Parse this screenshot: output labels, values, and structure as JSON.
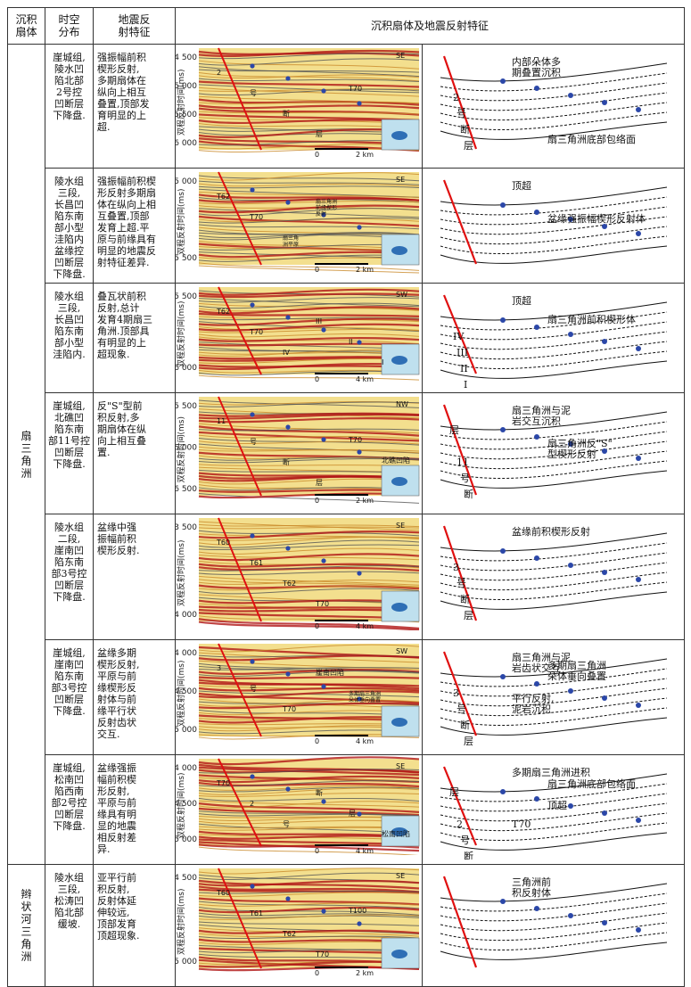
{
  "header": {
    "col1": "沉积\n扇体",
    "col2": "时空\n分布",
    "col3": "地震反\n射特征",
    "col4": "沉积扇体及地震反射特征"
  },
  "categories": {
    "fan_delta": "扇\n三\n角\n洲",
    "braided_delta": "辫\n状\n河\n三\n角\n洲"
  },
  "axis_label": "双程反射时间(ms)",
  "rows": [
    {
      "time": "崖城组,\n陵水凹\n陷北部\n2号控\n凹断层\n下降盘.",
      "desc": "强振幅前积\n楔形反射,\n多期扇体在\n纵向上相互\n叠置,顶部发\n育明显的上\n超.",
      "ticks": [
        "4 500",
        "5 000",
        "5 500",
        "6 000"
      ],
      "scale": "2 km",
      "orient": "SE",
      "profile_labels": [
        "2",
        "号",
        "断",
        "层",
        "T70"
      ],
      "sketch": [
        "内部朵体多\n期叠置沉积",
        "2",
        "号",
        "断",
        "层",
        "扇三角洲底部包络面"
      ]
    },
    {
      "time": "陵水组\n三段,\n长昌凹\n陷东南\n部小型\n洼陷内\n盆缘控\n凹断层\n下降盘.",
      "desc": "强振幅前积楔\n形反射多期扇\n体在纵向上相\n互叠置,顶部\n发育上超.平\n原与前缘具有\n明显的地震反\n射特征差异.",
      "ticks": [
        "5 000",
        "5 500"
      ],
      "scale": "2 km",
      "orient": "SE",
      "profile_labels": [
        "T62",
        "T70",
        "扇三角\n洲平原",
        "扇三角洲\n前缘楔形\n反射"
      ],
      "sketch": [
        "顶超",
        "盆缘强振幅楔形反射体"
      ]
    },
    {
      "time": "陵水组\n三段,\n长昌凹\n陷东南\n部小型\n洼陷内.",
      "desc": "叠瓦状前积\n反射,总计\n发育4期扇三\n角洲.顶部具\n有明显的上\n超现象.",
      "ticks": [
        "5 500",
        "6 000"
      ],
      "scale": "4 km",
      "orient": "SW",
      "profile_labels": [
        "T62",
        "T70",
        "IV",
        "III",
        "II",
        "I"
      ],
      "sketch": [
        "顶超",
        "IV",
        "III",
        "II",
        "I",
        "扇三角洲前积楔形体"
      ]
    },
    {
      "time": "崖城组,\n北礁凹\n陷东南\n部11号控\n凹断层\n下降盘.",
      "desc": "反\"S\"型前\n积反射,多\n期扇体在纵\n向上相互叠\n置.",
      "ticks": [
        "5 500",
        "6 000",
        "6 500"
      ],
      "scale": "2 km",
      "orient": "NW",
      "profile_labels": [
        "11",
        "号",
        "断",
        "层",
        "T70",
        "北礁凹陷"
      ],
      "sketch": [
        "扇三角洲与泥\n岩交互沉积",
        "扇三角洲反\"S\"\n型楔形反射",
        "11",
        "号",
        "断",
        "层"
      ]
    },
    {
      "time": "陵水组\n二段,\n崖南凹\n陷东南\n部3号控\n凹断层\n下降盘.",
      "desc": "盆缘中强\n振幅前积\n楔形反射.",
      "ticks": [
        "3 500",
        "4 000"
      ],
      "scale": "4 km",
      "orient": "SE",
      "profile_labels": [
        "T60",
        "T61",
        "T62",
        "T70"
      ],
      "sketch": [
        "盆缘前积楔形反射",
        "3",
        "号",
        "断",
        "层"
      ]
    },
    {
      "time": "崖城组,\n崖南凹\n陷东南\n部3号控\n凹断层\n下降盘.",
      "desc": "盆缘多期\n楔形反射,\n平原与前\n缘楔形反\n射体与前\n缘平行状\n反射齿状\n交互.",
      "ticks": [
        "4 000",
        "4 500",
        "5 000"
      ],
      "scale": "4 km",
      "orient": "SW",
      "profile_labels": [
        "3",
        "号",
        "T70",
        "崖南凹陷",
        "多期扇三角洲\n朵体垂向叠置"
      ],
      "sketch": [
        "扇三角洲与泥\n岩齿状交互",
        "3",
        "号",
        "断",
        "层",
        "多期扇三角洲\n朵体垂向叠置",
        "平行反射,\n泥岩沉积"
      ]
    },
    {
      "time": "崖城组,\n松南凹\n陷西南\n部2号控\n凹断层\n下降盘.",
      "desc": "盆缘强振\n幅前积楔\n形反射,\n平原与前\n缘具有明\n显的地震\n相反射差\n异.",
      "ticks": [
        "4 000",
        "4 500",
        "5 000"
      ],
      "scale": "4 km",
      "orient": "SE",
      "profile_labels": [
        "T70",
        "2",
        "号",
        "断",
        "层",
        "松南凹陷"
      ],
      "sketch": [
        "多期扇三角洲进积",
        "顶超",
        "2",
        "号",
        "断",
        "层",
        "T70",
        "扇三角洲底部包络面"
      ]
    },
    {
      "time": "陵水组\n三段,\n松涛凹\n陷北部\n缓坡.",
      "desc": "亚平行前\n积反射,\n反射体延\n伸较远,\n顶部发育\n顶超现象.",
      "ticks": [
        "4 500",
        "5 000"
      ],
      "scale": "2 km",
      "orient": "SE",
      "profile_labels": [
        "T60",
        "T61",
        "T62",
        "T70",
        "T100"
      ],
      "sketch": [
        "三角洲前\n积反射体"
      ]
    }
  ]
}
